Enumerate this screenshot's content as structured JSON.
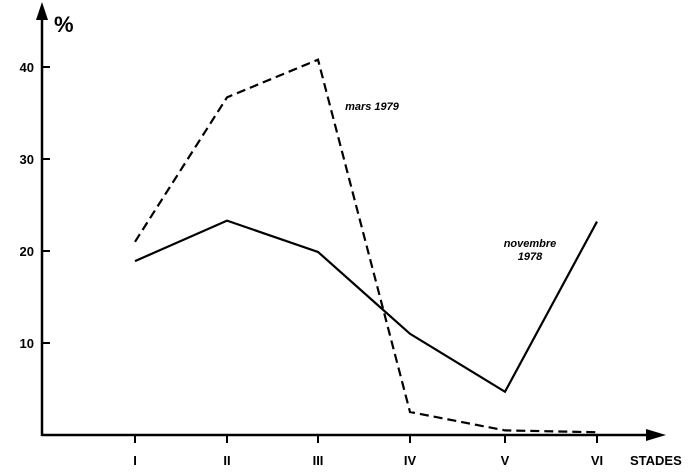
{
  "chart_data": {
    "type": "line",
    "title": "",
    "xlabel": "STADES",
    "ylabel": "%",
    "categories": [
      "I",
      "II",
      "III",
      "IV",
      "V",
      "VI"
    ],
    "yticks": [
      10,
      20,
      30,
      40
    ],
    "ylim": [
      0,
      45
    ],
    "grid": false,
    "series": [
      {
        "name": "novembre 1978",
        "label_lines": [
          "novembre",
          "1978"
        ],
        "style": "solid",
        "values": [
          18.9,
          23.3,
          19.9,
          11.0,
          4.7,
          23.2
        ]
      },
      {
        "name": "mars 1979",
        "label_lines": [
          "mars 1979"
        ],
        "style": "dashed",
        "values": [
          21.0,
          36.7,
          40.8,
          2.5,
          0.5,
          0.3
        ]
      }
    ]
  }
}
